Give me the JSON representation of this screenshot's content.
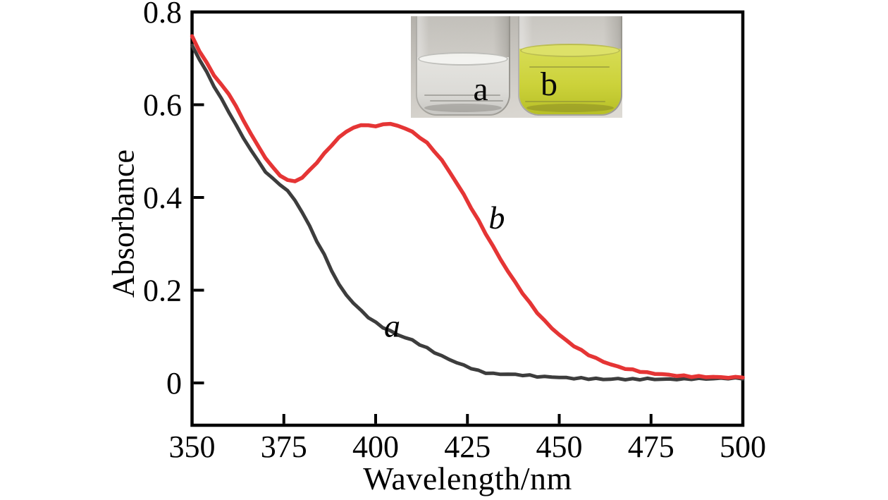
{
  "figure": {
    "background": "#ffffff",
    "frame_color": "#000000"
  },
  "chart_data": {
    "type": "line",
    "title": "",
    "xlabel": "Wavelength/nm",
    "ylabel": "Absorbance",
    "xlim": [
      350,
      500
    ],
    "ylim": [
      -0.09,
      0.8
    ],
    "x_ticks": [
      350,
      375,
      400,
      425,
      450,
      475,
      500
    ],
    "x_tick_labels": [
      "350",
      "375",
      "400",
      "425",
      "450",
      "475",
      "500"
    ],
    "y_ticks": [
      0,
      0.2,
      0.4,
      0.6,
      0.8
    ],
    "y_tick_labels": [
      "0",
      "0.2",
      "0.4",
      "0.6",
      "0.8"
    ],
    "grid": false,
    "x": [
      350,
      352,
      354,
      356,
      358,
      360,
      362,
      364,
      366,
      368,
      370,
      372,
      374,
      376,
      378,
      380,
      382,
      384,
      386,
      388,
      390,
      392,
      394,
      396,
      398,
      400,
      402,
      404,
      406,
      408,
      410,
      412,
      414,
      416,
      418,
      420,
      422,
      424,
      426,
      428,
      430,
      432,
      434,
      436,
      438,
      440,
      442,
      444,
      446,
      448,
      450,
      452,
      454,
      456,
      458,
      460,
      462,
      464,
      466,
      468,
      470,
      472,
      474,
      476,
      478,
      480,
      482,
      484,
      486,
      488,
      490,
      492,
      494,
      496,
      498,
      500
    ],
    "series": [
      {
        "name": "a",
        "color": "#3d3d3d",
        "values": [
          0.728,
          0.698,
          0.67,
          0.64,
          0.612,
          0.585,
          0.556,
          0.528,
          0.503,
          0.478,
          0.456,
          0.44,
          0.428,
          0.414,
          0.394,
          0.368,
          0.338,
          0.306,
          0.276,
          0.243,
          0.212,
          0.19,
          0.172,
          0.156,
          0.142,
          0.13,
          0.12,
          0.112,
          0.104,
          0.098,
          0.092,
          0.083,
          0.075,
          0.066,
          0.058,
          0.051,
          0.044,
          0.038,
          0.032,
          0.026,
          0.022,
          0.02,
          0.019,
          0.019,
          0.018,
          0.017,
          0.016,
          0.014,
          0.013,
          0.013,
          0.012,
          0.011,
          0.01,
          0.01,
          0.009,
          0.009,
          0.008,
          0.008,
          0.009,
          0.008,
          0.008,
          0.008,
          0.009,
          0.008,
          0.008,
          0.008,
          0.008,
          0.008,
          0.009,
          0.009,
          0.009,
          0.009,
          0.01,
          0.01,
          0.01,
          0.01
        ]
      },
      {
        "name": "b",
        "color": "#e53535",
        "values": [
          0.748,
          0.716,
          0.69,
          0.664,
          0.642,
          0.624,
          0.596,
          0.566,
          0.538,
          0.51,
          0.486,
          0.464,
          0.448,
          0.437,
          0.435,
          0.443,
          0.458,
          0.476,
          0.494,
          0.513,
          0.529,
          0.542,
          0.551,
          0.555,
          0.557,
          0.552,
          0.559,
          0.558,
          0.555,
          0.549,
          0.541,
          0.53,
          0.517,
          0.5,
          0.48,
          0.457,
          0.432,
          0.406,
          0.378,
          0.35,
          0.322,
          0.294,
          0.267,
          0.241,
          0.217,
          0.194,
          0.172,
          0.152,
          0.134,
          0.118,
          0.104,
          0.091,
          0.08,
          0.07,
          0.061,
          0.053,
          0.046,
          0.04,
          0.035,
          0.031,
          0.028,
          0.025,
          0.022,
          0.02,
          0.019,
          0.017,
          0.016,
          0.015,
          0.014,
          0.014,
          0.013,
          0.013,
          0.012,
          0.012,
          0.012,
          0.013
        ]
      }
    ],
    "annotations": [
      {
        "text": "a",
        "x": 404.5,
        "y": 0.123
      },
      {
        "text": "b",
        "x": 433.0,
        "y": 0.357
      }
    ]
  },
  "inset": {
    "vials": [
      {
        "label": "a",
        "appearance": "colorless",
        "liquid_color": "#dcdbd7"
      },
      {
        "label": "b",
        "appearance": "yellow",
        "liquid_color": "#ccd23a"
      }
    ]
  }
}
